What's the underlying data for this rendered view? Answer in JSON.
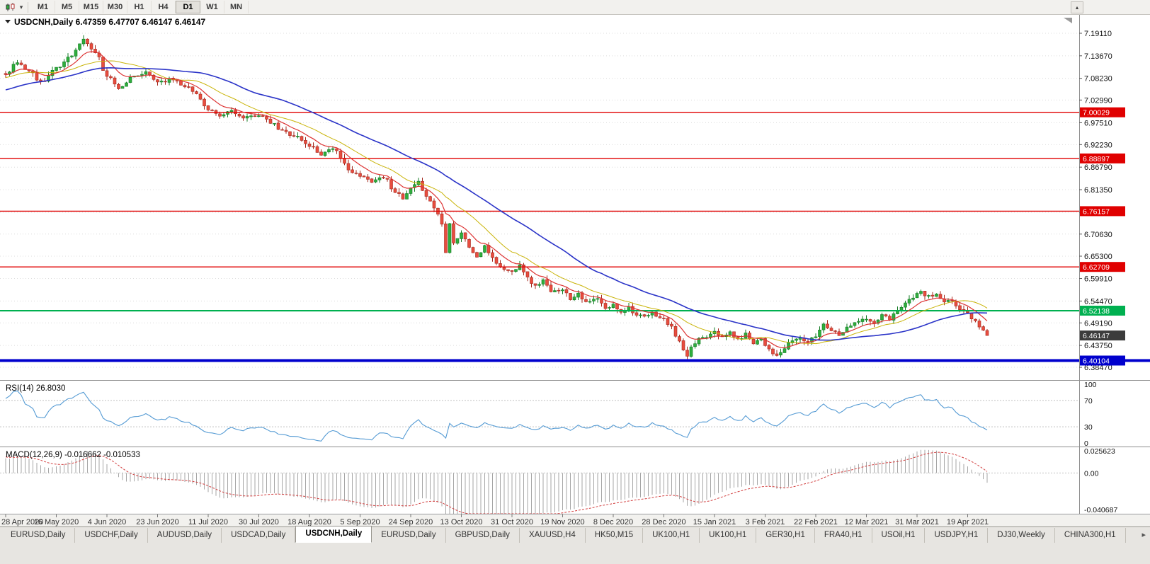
{
  "toolbar": {
    "timeframes": [
      "M1",
      "M5",
      "M15",
      "M30",
      "H1",
      "H4",
      "D1",
      "W1",
      "MN"
    ],
    "active_timeframe": "D1",
    "dropdown_icon": "▾",
    "collapse_icon": "▴"
  },
  "tabs": {
    "items": [
      "EURUSD,Daily",
      "USDCHF,Daily",
      "AUDUSD,Daily",
      "USDCAD,Daily",
      "USDCNH,Daily",
      "EURUSD,Daily",
      "GBPUSD,Daily",
      "XAUUSD,H4",
      "HK50,M15",
      "UK100,H1",
      "UK100,H1",
      "GER30,H1",
      "FRA40,H1",
      "USOil,H1",
      "USDJPY,H1",
      "DJ30,Weekly",
      "CHINA300,H1"
    ],
    "active_index": 4,
    "scroll_right_icon": "▸"
  },
  "chart_data": {
    "type": "candlestick",
    "symbol": "USDCNH",
    "timeframe": "Daily",
    "title": "USDCNH,Daily 6.47359 6.47707 6.46147 6.46147",
    "ohlc": {
      "open": 6.47359,
      "high": 6.47707,
      "low": 6.46147,
      "close": 6.46147
    },
    "x_labels": [
      "28 Apr 2020",
      "16 May 2020",
      "4 Jun 2020",
      "23 Jun 2020",
      "11 Jul 2020",
      "30 Jul 2020",
      "18 Aug 2020",
      "5 Sep 2020",
      "24 Sep 2020",
      "13 Oct 2020",
      "31 Oct 2020",
      "19 Nov 2020",
      "8 Dec 2020",
      "28 Dec 2020",
      "15 Jan 2021",
      "3 Feb 2021",
      "22 Feb 2021",
      "12 Mar 2021",
      "31 Mar 2021",
      "19 Apr 2021"
    ],
    "candles_per_label": 13,
    "num_candles": 253,
    "price_scale_labels": [
      "7.19110",
      "7.13670",
      "7.08230",
      "7.02990",
      "6.97510",
      "6.92230",
      "6.86790",
      "6.81350",
      "6.75910",
      "6.70630",
      "6.65300",
      "6.59910",
      "6.54470",
      "6.49190",
      "6.43750",
      "6.38470"
    ],
    "close_anchors": [
      [
        -45,
        7.0
      ],
      [
        0,
        7.095
      ],
      [
        3,
        7.12
      ],
      [
        6,
        7.1
      ],
      [
        9,
        7.075
      ],
      [
        13,
        7.105
      ],
      [
        17,
        7.14
      ],
      [
        20,
        7.175
      ],
      [
        23,
        7.145
      ],
      [
        26,
        7.09
      ],
      [
        29,
        7.06
      ],
      [
        33,
        7.085
      ],
      [
        36,
        7.095
      ],
      [
        39,
        7.075
      ],
      [
        43,
        7.08
      ],
      [
        46,
        7.065
      ],
      [
        49,
        7.045
      ],
      [
        52,
        7.005
      ],
      [
        55,
        6.99
      ],
      [
        58,
        7.005
      ],
      [
        61,
        6.985
      ],
      [
        65,
        6.995
      ],
      [
        68,
        6.975
      ],
      [
        71,
        6.955
      ],
      [
        74,
        6.945
      ],
      [
        78,
        6.92
      ],
      [
        81,
        6.9
      ],
      [
        84,
        6.915
      ],
      [
        87,
        6.875
      ],
      [
        89,
        6.855
      ],
      [
        91,
        6.845
      ],
      [
        94,
        6.835
      ],
      [
        97,
        6.845
      ],
      [
        100,
        6.81
      ],
      [
        102,
        6.79
      ],
      [
        104,
        6.815
      ],
      [
        106,
        6.83
      ],
      [
        108,
        6.8
      ],
      [
        110,
        6.77
      ],
      [
        111,
        6.755
      ],
      [
        112,
        6.73
      ],
      [
        113,
        6.665
      ],
      [
        114,
        6.735
      ],
      [
        115,
        6.685
      ],
      [
        117,
        6.71
      ],
      [
        119,
        6.675
      ],
      [
        121,
        6.65
      ],
      [
        123,
        6.675
      ],
      [
        125,
        6.65
      ],
      [
        127,
        6.625
      ],
      [
        130,
        6.615
      ],
      [
        132,
        6.635
      ],
      [
        134,
        6.6
      ],
      [
        136,
        6.58
      ],
      [
        138,
        6.595
      ],
      [
        140,
        6.565
      ],
      [
        143,
        6.575
      ],
      [
        145,
        6.55
      ],
      [
        147,
        6.565
      ],
      [
        149,
        6.54
      ],
      [
        152,
        6.55
      ],
      [
        154,
        6.525
      ],
      [
        156,
        6.535
      ],
      [
        158,
        6.52
      ],
      [
        160,
        6.53
      ],
      [
        162,
        6.51
      ],
      [
        164,
        6.505
      ],
      [
        166,
        6.515
      ],
      [
        169,
        6.5
      ],
      [
        171,
        6.48
      ],
      [
        173,
        6.445
      ],
      [
        175,
        6.408
      ],
      [
        176,
        6.43
      ],
      [
        178,
        6.455
      ],
      [
        180,
        6.46
      ],
      [
        182,
        6.475
      ],
      [
        184,
        6.455
      ],
      [
        186,
        6.47
      ],
      [
        188,
        6.45
      ],
      [
        190,
        6.465
      ],
      [
        192,
        6.445
      ],
      [
        194,
        6.455
      ],
      [
        195,
        6.44
      ],
      [
        197,
        6.42
      ],
      [
        198,
        6.41
      ],
      [
        200,
        6.43
      ],
      [
        202,
        6.45
      ],
      [
        204,
        6.455
      ],
      [
        206,
        6.445
      ],
      [
        208,
        6.46
      ],
      [
        210,
        6.49
      ],
      [
        212,
        6.475
      ],
      [
        214,
        6.465
      ],
      [
        216,
        6.48
      ],
      [
        218,
        6.495
      ],
      [
        221,
        6.5
      ],
      [
        223,
        6.49
      ],
      [
        225,
        6.51
      ],
      [
        227,
        6.5
      ],
      [
        229,
        6.525
      ],
      [
        231,
        6.54
      ],
      [
        233,
        6.555
      ],
      [
        235,
        6.565
      ],
      [
        237,
        6.555
      ],
      [
        239,
        6.56
      ],
      [
        241,
        6.54
      ],
      [
        243,
        6.545
      ],
      [
        245,
        6.525
      ],
      [
        247,
        6.515
      ],
      [
        249,
        6.495
      ],
      [
        251,
        6.475
      ],
      [
        252,
        6.4615
      ]
    ],
    "noise": {
      "seed": 11,
      "body": 0.004,
      "wick": 0.01
    },
    "moving_averages": [
      {
        "name": "ma-mid-yellow",
        "type": "sma",
        "period": 18,
        "color": "#c9b409",
        "width": 1
      },
      {
        "name": "ma-fast-red",
        "type": "ema",
        "period": 9,
        "color": "#dd3333",
        "width": 1.2
      },
      {
        "name": "ma-slow-blue",
        "type": "sma",
        "period": 40,
        "color": "#2b34c8",
        "width": 1.6
      }
    ],
    "horizontal_lines": [
      {
        "value": 7.00029,
        "label": "7.00029",
        "color": "#e00000",
        "width": 1.4
      },
      {
        "value": 6.88897,
        "label": "6.88897",
        "color": "#e00000",
        "width": 1.4
      },
      {
        "value": 6.76157,
        "label": "6.76157",
        "color": "#e00000",
        "width": 1.4
      },
      {
        "value": 6.62709,
        "label": "6.62709",
        "color": "#e00000",
        "width": 1.4
      },
      {
        "value": 6.52138,
        "label": "6.52138",
        "color": "#00b050",
        "width": 2.2
      },
      {
        "value": 6.40104,
        "label": "6.40104",
        "color": "#0000cd",
        "width": 4
      }
    ],
    "current_price": {
      "value": 6.46147,
      "label": "6.46147",
      "box_color": "#3c3c3c"
    },
    "candle_colors": {
      "up": "#2fae3d",
      "up_border": "#117a22",
      "down": "#e84d3f",
      "down_border": "#a3271c"
    },
    "grid_color": "#dcdcdc",
    "indicator_rsi": {
      "label": "RSI(14) 26.8030",
      "period": 14,
      "value_display": "26.8030",
      "levels": [
        70,
        30
      ],
      "scale_labels": [
        "100",
        "70",
        "30",
        "0"
      ],
      "color": "#559bd4"
    },
    "indicator_macd": {
      "label": "MACD(12,26,9) -0.016662 -0.010533",
      "fast": 12,
      "slow": 26,
      "signal": 9,
      "scale_top": 0.025623,
      "scale_bottom": -0.040687,
      "scale_labels": [
        "0.025623",
        "0.00",
        "-0.040687"
      ],
      "histogram_color": "#a6a6a6",
      "signal_color": "#d23f3f"
    }
  }
}
